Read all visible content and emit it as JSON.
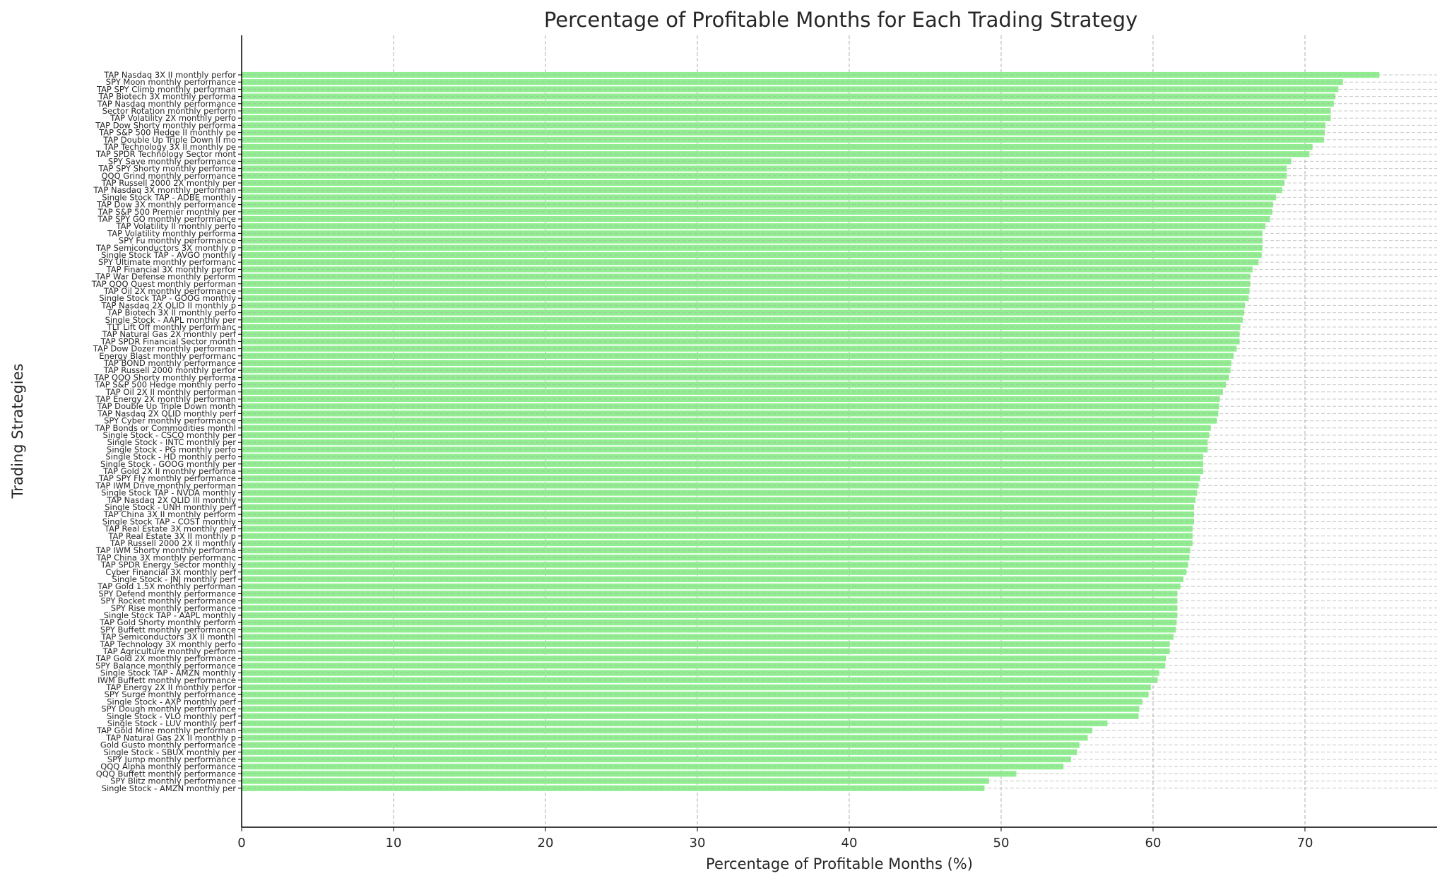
{
  "chart_data": {
    "type": "bar",
    "orientation": "horizontal",
    "title": "Percentage of Profitable Months for Each Trading Strategy",
    "xlabel": "Percentage of Profitable Months (%)",
    "ylabel": "Trading Strategies",
    "xlim": [
      0,
      78.7
    ],
    "xticks": [
      "0",
      "10",
      "20",
      "30",
      "40",
      "50",
      "60",
      "70"
    ],
    "grid": true,
    "bar_color": "#90ee90",
    "categories": [
      "TAP Nasdaq 3X II monthly perfor",
      "SPY Moon monthly performance",
      "TAP SPY Climb monthly performan",
      "TAP Biotech 3X monthly performa",
      "TAP Nasdaq monthly performance",
      "Sector Rotation monthly perform",
      "TAP Volatility 2X monthly perfo",
      "TAP Dow Shorty monthly performa",
      "TAP S&P 500 Hedge II monthly pe",
      "TAP Double Up Triple Down II mo",
      "TAP Technology 3X II monthly pe",
      "TAP SPDR Technology Sector mont",
      "SPY Save monthly performance",
      "TAP SPY Shorty monthly performa",
      "QQQ Grind monthly performance",
      "TAP Russell 2000 2X monthly per",
      "TAP Nasdaq 3X monthly performan",
      "Single Stock TAP - ADBE monthly",
      "TAP Dow 3X monthly performance",
      "TAP S&P 500 Premier monthly per",
      "TAP SPY GO monthly performance",
      "TAP Volatility II monthly perfo",
      "TAP Volatility monthly performa",
      "SPY Fu monthly performance",
      "TAP Semiconductors 3X monthly p",
      "Single Stock TAP - AVGO monthly",
      "SPY Ultimate monthly performanc",
      "TAP Financial 3X monthly perfor",
      "TAP War Defense monthly perform",
      "TAP QQQ Quest monthly performan",
      "TAP Oil 2X monthly performance",
      "Single Stock TAP - GOOG monthly",
      "TAP Nasdaq 2X QLID II monthly p",
      "TAP Biotech 3X II monthly perfo",
      "Single Stock - AAPL monthly per",
      "TLT Lift Off monthly performanc",
      "TAP Natural Gas 2X monthly perf",
      "TAP SPDR Financial Sector month",
      "TAP Dow Dozer monthly performan",
      "Energy Blast monthly performanc",
      "TAP BOND monthly performance",
      "TAP Russell 2000 monthly perfor",
      "TAP QQQ Shorty monthly performa",
      "TAP S&P 500 Hedge monthly perfo",
      "TAP Oil 2X II monthly performan",
      "TAP Energy 2X monthly performan",
      "TAP Double Up Triple Down month",
      "TAP Nasdaq 2X QLID monthly perf",
      "SPY Cyber monthly performance",
      "TAP Bonds or Commodities monthl",
      "Single Stock - CSCO monthly per",
      "Single Stock - INTC monthly per",
      "Single Stock - PG monthly perfo",
      "Single Stock - HD monthly perfo",
      "Single Stock - GOOG monthly per",
      "TAP Gold 2X II monthly performa",
      "TAP SPY Fly monthly performance",
      "TAP IWM Drive monthly performan",
      "Single Stock TAP - NVDA monthly",
      "TAP Nasdaq 2X QLID III monthly",
      "Single Stock - UNH monthly perf",
      "TAP China 3X II monthly perform",
      "Single Stock TAP - COST monthly",
      "TAP Real Estate 3X monthly perf",
      "TAP Real Estate 3X II monthly p",
      "TAP Russell 2000 2X II monthly",
      "TAP IWM Shorty monthly performa",
      "TAP China 3X monthly performanc",
      "TAP SPDR Energy Sector monthly",
      "Cyber Financial 3X monthly perf",
      "Single Stock - JNJ monthly perf",
      "TAP Gold 1.5X monthly performan",
      "SPY Defend monthly performance",
      "SPY Rocket monthly performance",
      "SPY Rise monthly performance",
      "Single Stock TAP - AAPL monthly",
      "TAP Gold Shorty monthly perform",
      "SPY Buffett monthly performance",
      "TAP Semiconductors 3X II monthl",
      "TAP Technology 3X monthly perfo",
      "TAP Agriculture monthly perform",
      "TAP Gold 2X monthly performance",
      "SPY Balance monthly performance",
      "Single Stock TAP - AMZN monthly",
      "IWM Buffett monthly performance",
      "TAP Energy 2X II monthly perfor",
      "SPY Surge monthly performance",
      "Single Stock - AXP monthly perf",
      "SPY Dough monthly performance",
      "Single Stock - VLO monthly perf",
      "Single Stock - LUV monthly perf",
      "TAP Gold Mine monthly performan",
      "TAP Natural Gas 2X II monthly p",
      "Gold Gusto monthly performance",
      "Single Stock - SBUX monthly per",
      "SPY Jump monthly performance",
      "QQQ Alpha monthly performance",
      "QQQ Buffett monthly performance",
      "SPY Blitz monthly performance",
      "Single Stock - AMZN monthly per"
    ],
    "values": [
      74.9,
      72.5,
      72.2,
      72.0,
      71.9,
      71.7,
      71.7,
      71.35,
      71.3,
      71.25,
      70.5,
      70.3,
      69.1,
      68.8,
      68.8,
      68.65,
      68.5,
      68.1,
      67.9,
      67.85,
      67.7,
      67.4,
      67.2,
      67.2,
      67.2,
      67.15,
      66.95,
      66.55,
      66.4,
      66.4,
      66.35,
      66.3,
      66.05,
      66.0,
      65.9,
      65.75,
      65.7,
      65.7,
      65.5,
      65.3,
      65.15,
      65.1,
      65.0,
      64.8,
      64.6,
      64.4,
      64.35,
      64.3,
      64.2,
      63.8,
      63.7,
      63.6,
      63.6,
      63.3,
      63.3,
      63.3,
      63.1,
      63.0,
      62.9,
      62.8,
      62.7,
      62.7,
      62.7,
      62.6,
      62.6,
      62.6,
      62.45,
      62.4,
      62.3,
      62.2,
      62.0,
      61.8,
      61.6,
      61.6,
      61.6,
      61.6,
      61.55,
      61.5,
      61.35,
      61.1,
      61.1,
      60.85,
      60.8,
      60.4,
      60.3,
      59.85,
      59.7,
      59.3,
      59.1,
      59.05,
      57.0,
      56.0,
      55.7,
      55.15,
      55.0,
      54.6,
      54.1,
      51.0,
      49.2,
      48.9
    ]
  }
}
